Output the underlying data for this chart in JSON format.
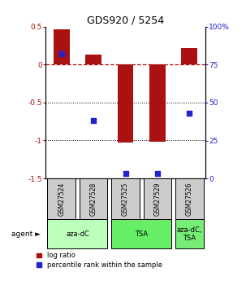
{
  "title": "GDS920 / 5254",
  "samples": [
    "GSM27524",
    "GSM27528",
    "GSM27525",
    "GSM27529",
    "GSM27526"
  ],
  "log_ratios": [
    0.47,
    0.13,
    -1.03,
    -1.02,
    0.22
  ],
  "percentile_ranks": [
    82,
    38,
    3,
    3,
    43
  ],
  "bar_color": "#aa1111",
  "dot_color": "#2222cc",
  "ylim_left": [
    -1.5,
    0.5
  ],
  "ylim_right": [
    0,
    100
  ],
  "yticks_left": [
    -1.5,
    -1.0,
    -0.5,
    0.0,
    0.5
  ],
  "yticks_right": [
    0,
    25,
    50,
    75,
    100
  ],
  "ytick_labels_left": [
    "-1.5",
    "-1",
    "-0.5",
    "0",
    "0.5"
  ],
  "ytick_labels_right": [
    "0",
    "25",
    "50",
    "75",
    "100%"
  ],
  "hline_positions": [
    -0.5,
    -1.0
  ],
  "dashed_hline": 0.0,
  "agent_labels": [
    "aza-dC",
    "TSA",
    "aza-dC,\nTSA"
  ],
  "agent_groups": [
    [
      0,
      1
    ],
    [
      2,
      3
    ],
    [
      4
    ]
  ],
  "agent_colors_light": [
    "#bbffbb",
    "#bbffbb",
    "#77ee77"
  ],
  "agent_colors_medium": [
    "#bbffbb",
    "#66ee66",
    "#77ee77"
  ],
  "sample_box_color": "#cccccc",
  "background_color": "#ffffff",
  "legend_red": "log ratio",
  "legend_blue": "percentile rank within the sample",
  "bar_width": 0.5
}
